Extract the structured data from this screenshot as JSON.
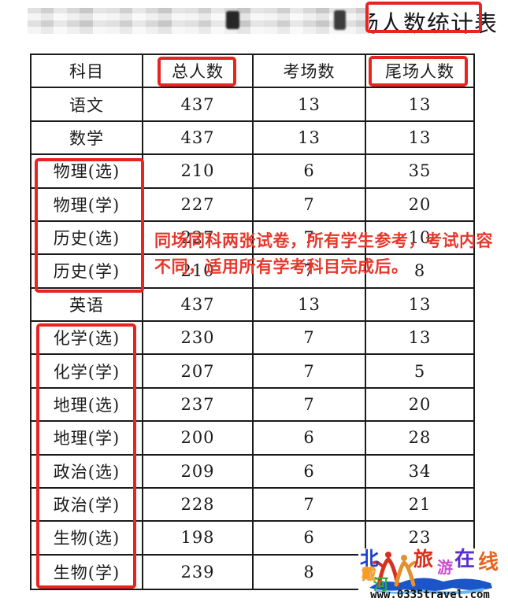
{
  "title": {
    "partial_char": "场",
    "visible_text": "人数统计表"
  },
  "annotation": {
    "lines": [
      "同场同科两张试卷，所有学生参考，考试内容",
      "不同，适用所有学考科目完成后。"
    ]
  },
  "table": {
    "headers": [
      "科目",
      "总人数",
      "考场数",
      "尾场人数"
    ],
    "rows": [
      [
        "语文",
        "437",
        "13",
        "13"
      ],
      [
        "数学",
        "437",
        "13",
        "13"
      ],
      [
        "物理(选)",
        "210",
        "6",
        "35"
      ],
      [
        "物理(学)",
        "227",
        "7",
        "20"
      ],
      [
        "历史(选)",
        "227",
        "7",
        "10"
      ],
      [
        "历史(学)",
        "210",
        "7",
        "8"
      ],
      [
        "英语",
        "437",
        "13",
        "13"
      ],
      [
        "化学(选)",
        "230",
        "7",
        "13"
      ],
      [
        "化学(学)",
        "207",
        "7",
        "5"
      ],
      [
        "地理(选)",
        "237",
        "7",
        "20"
      ],
      [
        "地理(学)",
        "200",
        "6",
        "28"
      ],
      [
        "政治(选)",
        "209",
        "6",
        "34"
      ],
      [
        "政治(学)",
        "228",
        "7",
        "21"
      ],
      [
        "生物(选)",
        "198",
        "6",
        "23"
      ],
      [
        "生物(学)",
        "239",
        "8",
        ""
      ]
    ]
  },
  "watermark": {
    "brand_chars": [
      "北",
      "戴",
      "河",
      "旅",
      "游",
      "在",
      "线"
    ],
    "url": "www.0335travel.com"
  },
  "colors": {
    "highlight_red": "#e62420",
    "annotation_red": "#e6382c"
  }
}
